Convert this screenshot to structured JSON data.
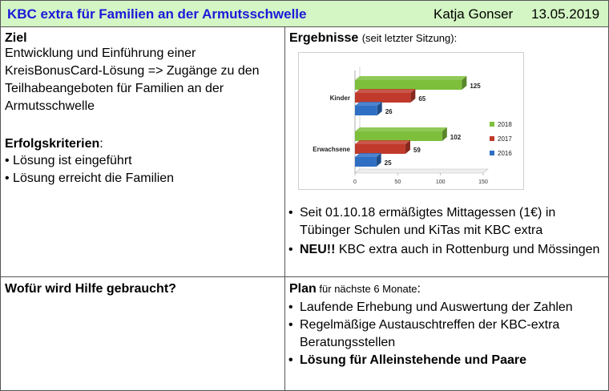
{
  "header": {
    "title": "KBC extra für Familien an der Armutsschwelle",
    "author": "Katja Gonser",
    "date": "13.05.2019"
  },
  "ziel": {
    "heading": "Ziel",
    "text": "Entwicklung und Einführung einer KreisBonusCard-Lösung => Zugänge zu den Teilhabeangeboten für Familien an der Armutsschwelle",
    "criteria_heading": "Erfolgskriterien",
    "criteria_colon": ":",
    "criteria": [
      "• Lösung ist eingeführt",
      "• Lösung erreicht die Familien"
    ]
  },
  "ergebnisse": {
    "heading": "Ergebnisse",
    "heading_note": "(seit letzter Sitzung):",
    "bullets": [
      {
        "text": "Seit 01.10.18 ermäßigtes Mittagessen (1€) in Tübinger Schulen und KiTas mit KBC extra",
        "bold_prefix": ""
      },
      {
        "text": " KBC extra auch in Rottenburg und Mössingen",
        "bold_prefix": "NEU!!"
      }
    ]
  },
  "chart_data": {
    "type": "bar",
    "orientation": "horizontal",
    "categories": [
      "Kinder",
      "Erwachsene"
    ],
    "series": [
      {
        "name": "2018",
        "values": [
          125,
          102
        ],
        "color": "#7dbf3b"
      },
      {
        "name": "2017",
        "values": [
          65,
          59
        ],
        "color": "#c0392b"
      },
      {
        "name": "2016",
        "values": [
          26,
          25
        ],
        "color": "#2e6fc4"
      }
    ],
    "xlim": [
      0,
      150
    ],
    "xticks": [
      0,
      50,
      100,
      150
    ],
    "legend_position": "right",
    "grid": false
  },
  "hilfe": {
    "heading": "Wofür wird Hilfe gebraucht?"
  },
  "plan": {
    "heading": "Plan",
    "heading_note": " für nächste 6 Monate",
    "heading_colon": ":",
    "bullets": [
      {
        "text": "Laufende Erhebung und Auswertung der Zahlen",
        "bold": false
      },
      {
        "text": "Regelmäßige Austauschtreffen der KBC-extra Beratungsstellen",
        "bold": false
      },
      {
        "text": "Lösung für Alleinstehende und Paare",
        "bold": true
      }
    ]
  },
  "bullet_char": "•"
}
